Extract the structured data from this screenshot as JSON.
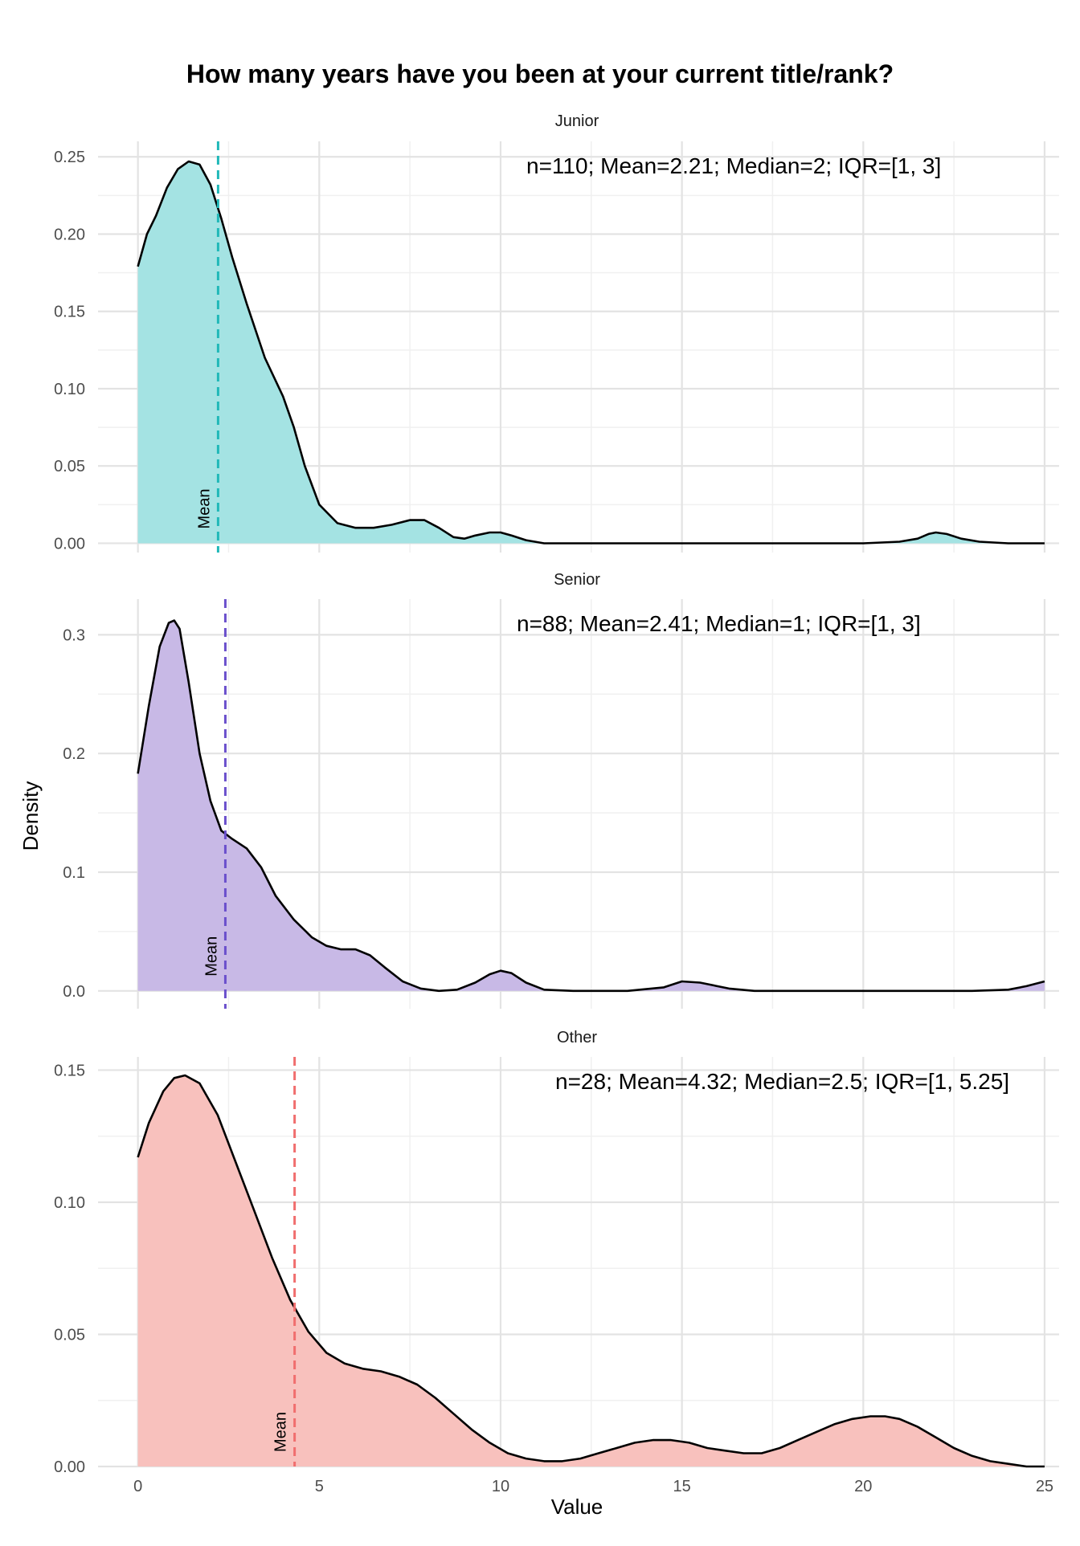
{
  "chart_data": {
    "type": "area",
    "title": "How many years have you been at your current title/rank?",
    "xlabel": "Value",
    "ylabel": "Density",
    "xlim": [
      -1.1,
      25.4
    ],
    "x_ticks": [
      0,
      5,
      10,
      15,
      20,
      25
    ],
    "mean_line_label": "Mean",
    "grid": true,
    "legend": "none",
    "panels": [
      {
        "name": "Junior",
        "color": "#20B8B8",
        "fill": "#A4E3E3",
        "stats": "n=110; Mean=2.21; Median=2; IQR=[1, 3]",
        "mean": 2.21,
        "ylim": [
          -0.006,
          0.26
        ],
        "y_ticks": [
          0.0,
          0.05,
          0.1,
          0.15,
          0.2,
          0.25
        ],
        "y_tick_labels": [
          "0.00",
          "0.05",
          "0.10",
          "0.15",
          "0.20",
          "0.25"
        ],
        "x": [
          0,
          0.25,
          0.5,
          0.8,
          1.1,
          1.4,
          1.7,
          2.0,
          2.3,
          2.6,
          3.0,
          3.5,
          4.0,
          4.3,
          4.6,
          5.0,
          5.5,
          6.0,
          6.5,
          7.0,
          7.5,
          7.9,
          8.3,
          8.7,
          9.0,
          9.3,
          9.7,
          10.0,
          10.3,
          10.7,
          11.2,
          12,
          15,
          20,
          21,
          21.5,
          21.8,
          22.0,
          22.3,
          22.7,
          23.2,
          24,
          25
        ],
        "y": [
          0.179,
          0.2,
          0.212,
          0.23,
          0.242,
          0.247,
          0.245,
          0.232,
          0.21,
          0.185,
          0.155,
          0.12,
          0.095,
          0.075,
          0.05,
          0.025,
          0.013,
          0.01,
          0.01,
          0.012,
          0.015,
          0.015,
          0.01,
          0.004,
          0.003,
          0.005,
          0.007,
          0.007,
          0.005,
          0.002,
          0.0,
          0.0,
          0.0,
          0.0,
          0.001,
          0.003,
          0.006,
          0.007,
          0.006,
          0.003,
          0.001,
          0.0,
          0.0
        ]
      },
      {
        "name": "Senior",
        "color": "#6A4FCC",
        "fill": "#C8B9E6",
        "stats": "n=88; Mean=2.41; Median=1; IQR=[1, 3]",
        "mean": 2.41,
        "ylim": [
          -0.015,
          0.33
        ],
        "y_ticks": [
          0.0,
          0.1,
          0.2,
          0.3
        ],
        "y_tick_labels": [
          "0.0",
          "0.1",
          "0.2",
          "0.3"
        ],
        "x": [
          0,
          0.3,
          0.6,
          0.85,
          1.0,
          1.15,
          1.4,
          1.7,
          2.0,
          2.3,
          2.6,
          3.0,
          3.4,
          3.8,
          4.3,
          4.8,
          5.2,
          5.6,
          6.0,
          6.4,
          6.8,
          7.3,
          7.8,
          8.3,
          8.8,
          9.3,
          9.7,
          10.0,
          10.3,
          10.7,
          11.2,
          12,
          13.5,
          14.5,
          15.0,
          15.5,
          16.3,
          17,
          23,
          24,
          24.5,
          25
        ],
        "y": [
          0.183,
          0.24,
          0.29,
          0.31,
          0.312,
          0.305,
          0.26,
          0.2,
          0.16,
          0.135,
          0.128,
          0.12,
          0.104,
          0.08,
          0.06,
          0.045,
          0.038,
          0.035,
          0.035,
          0.03,
          0.02,
          0.008,
          0.002,
          0.0,
          0.001,
          0.007,
          0.014,
          0.017,
          0.015,
          0.007,
          0.001,
          0.0,
          0.0,
          0.003,
          0.008,
          0.007,
          0.002,
          0.0,
          0.0,
          0.001,
          0.004,
          0.008
        ]
      },
      {
        "name": "Other",
        "color": "#F06E6E",
        "fill": "#F8C1BD",
        "stats": "n=28; Mean=4.32; Median=2.5; IQR=[1, 5.25]",
        "mean": 4.32,
        "ylim": [
          0.0,
          0.155
        ],
        "y_ticks": [
          0.0,
          0.05,
          0.1,
          0.15
        ],
        "y_tick_labels": [
          "0.00",
          "0.05",
          "0.10",
          "0.15"
        ],
        "x": [
          0,
          0.3,
          0.7,
          1.0,
          1.3,
          1.7,
          2.2,
          2.7,
          3.2,
          3.7,
          4.2,
          4.7,
          5.2,
          5.7,
          6.2,
          6.7,
          7.2,
          7.7,
          8.2,
          8.7,
          9.2,
          9.7,
          10.2,
          10.7,
          11.2,
          11.7,
          12.2,
          12.7,
          13.2,
          13.7,
          14.2,
          14.7,
          15.2,
          15.7,
          16.2,
          16.7,
          17.2,
          17.7,
          18.2,
          18.7,
          19.2,
          19.7,
          20.2,
          20.6,
          21.0,
          21.5,
          22.0,
          22.5,
          23.0,
          23.5,
          24.0,
          24.5,
          25.0
        ],
        "y": [
          0.117,
          0.13,
          0.142,
          0.147,
          0.148,
          0.145,
          0.133,
          0.115,
          0.097,
          0.079,
          0.063,
          0.051,
          0.043,
          0.039,
          0.037,
          0.036,
          0.034,
          0.031,
          0.026,
          0.02,
          0.014,
          0.009,
          0.005,
          0.003,
          0.002,
          0.002,
          0.003,
          0.005,
          0.007,
          0.009,
          0.01,
          0.01,
          0.009,
          0.007,
          0.006,
          0.005,
          0.005,
          0.007,
          0.01,
          0.013,
          0.016,
          0.018,
          0.019,
          0.019,
          0.018,
          0.015,
          0.011,
          0.007,
          0.004,
          0.002,
          0.001,
          0.0,
          0.0
        ]
      }
    ]
  }
}
